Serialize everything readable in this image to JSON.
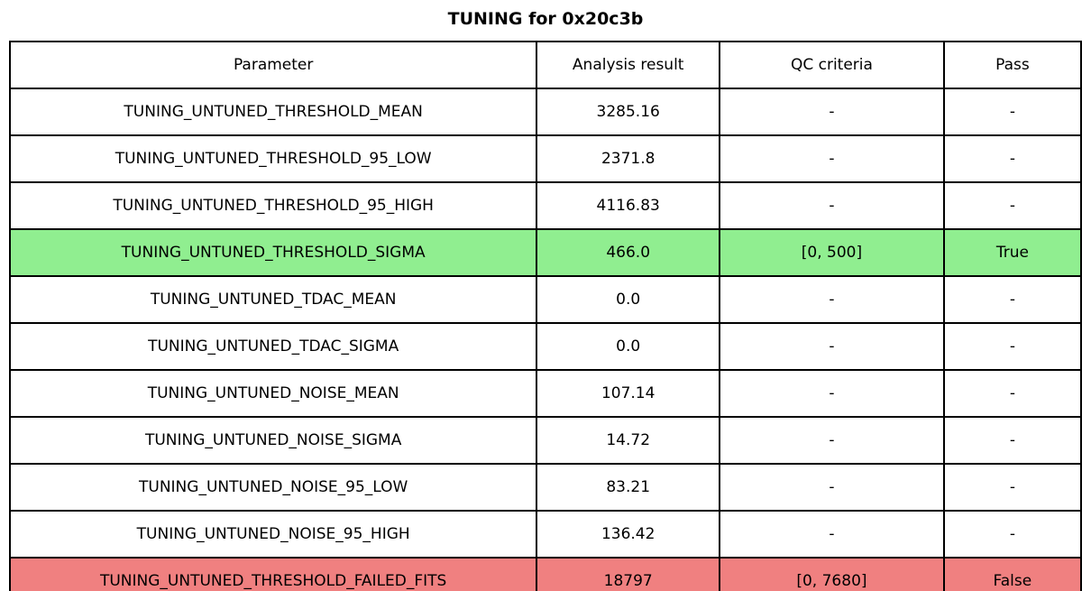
{
  "title": "TUNING for 0x20c3b",
  "colors": {
    "pass_row": "#90ee90",
    "fail_row": "#f08080",
    "default_row": "#ffffff",
    "border": "#000000",
    "background": "#ffffff"
  },
  "chart_data": {
    "type": "table",
    "title": "TUNING for 0x20c3b",
    "columns": [
      "Parameter",
      "Analysis result",
      "QC criteria",
      "Pass"
    ],
    "rows": [
      {
        "cells": [
          "TUNING_UNTUNED_THRESHOLD_MEAN",
          "3285.16",
          "-",
          "-"
        ],
        "status": "none"
      },
      {
        "cells": [
          "TUNING_UNTUNED_THRESHOLD_95_LOW",
          "2371.8",
          "-",
          "-"
        ],
        "status": "none"
      },
      {
        "cells": [
          "TUNING_UNTUNED_THRESHOLD_95_HIGH",
          "4116.83",
          "-",
          "-"
        ],
        "status": "none"
      },
      {
        "cells": [
          "TUNING_UNTUNED_THRESHOLD_SIGMA",
          "466.0",
          "[0, 500]",
          "True"
        ],
        "status": "pass"
      },
      {
        "cells": [
          "TUNING_UNTUNED_TDAC_MEAN",
          "0.0",
          "-",
          "-"
        ],
        "status": "none"
      },
      {
        "cells": [
          "TUNING_UNTUNED_TDAC_SIGMA",
          "0.0",
          "-",
          "-"
        ],
        "status": "none"
      },
      {
        "cells": [
          "TUNING_UNTUNED_NOISE_MEAN",
          "107.14",
          "-",
          "-"
        ],
        "status": "none"
      },
      {
        "cells": [
          "TUNING_UNTUNED_NOISE_SIGMA",
          "14.72",
          "-",
          "-"
        ],
        "status": "none"
      },
      {
        "cells": [
          "TUNING_UNTUNED_NOISE_95_LOW",
          "83.21",
          "-",
          "-"
        ],
        "status": "none"
      },
      {
        "cells": [
          "TUNING_UNTUNED_NOISE_95_HIGH",
          "136.42",
          "-",
          "-"
        ],
        "status": "none"
      },
      {
        "cells": [
          "TUNING_UNTUNED_THRESHOLD_FAILED_FITS",
          "18797",
          "[0, 7680]",
          "False"
        ],
        "status": "fail"
      }
    ]
  }
}
